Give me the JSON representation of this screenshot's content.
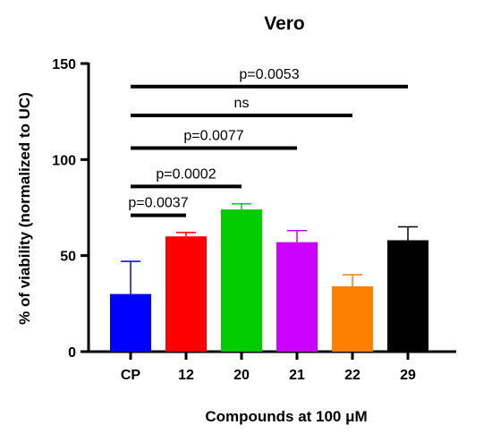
{
  "chart_data": {
    "type": "bar",
    "title": "Vero",
    "xlabel": "Compounds at 100 μM",
    "ylabel": "% of viability (normalized to UC)",
    "ylim": [
      0,
      150
    ],
    "yticks": [
      0,
      50,
      100,
      150
    ],
    "categories": [
      "CP",
      "12",
      "20",
      "21",
      "22",
      "29"
    ],
    "values": [
      30,
      60,
      74,
      57,
      34,
      58
    ],
    "errors": [
      17,
      2,
      3,
      6,
      6,
      7
    ],
    "colors": [
      "#0000ff",
      "#ff0000",
      "#00cc00",
      "#cc00ff",
      "#ff8000",
      "#000000"
    ],
    "comparisons": [
      {
        "from": "CP",
        "to": "12",
        "label": "p=0.0037",
        "y": 71
      },
      {
        "from": "CP",
        "to": "20",
        "label": "p=0.0002",
        "y": 86
      },
      {
        "from": "CP",
        "to": "21",
        "label": "p=0.0077",
        "y": 106
      },
      {
        "from": "CP",
        "to": "22",
        "label": "ns",
        "y": 123
      },
      {
        "from": "CP",
        "to": "29",
        "label": "p=0.0053",
        "y": 138
      }
    ],
    "grid": false,
    "legend": "none"
  }
}
